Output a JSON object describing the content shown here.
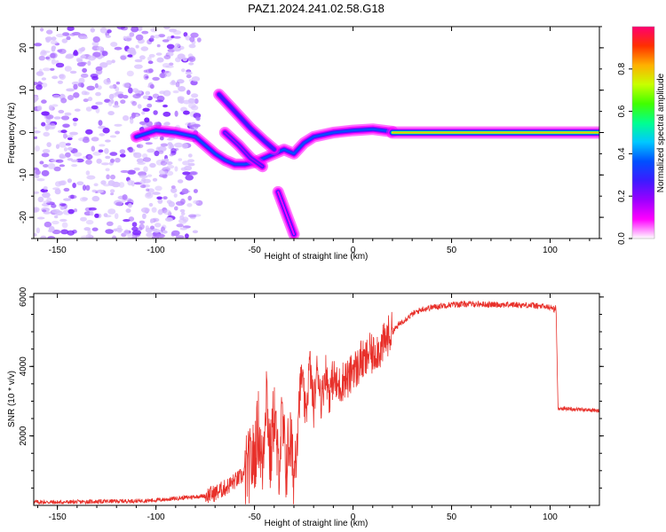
{
  "title": "PAZ1.2024.241.02.58.G18",
  "colors": {
    "snr_line": "#e8302a",
    "colormap": [
      "#ffffff",
      "#ff00ff",
      "#9b00ff",
      "#3c1bff",
      "#0050ff",
      "#00c8ff",
      "#00ff90",
      "#40ff00",
      "#c8ff00",
      "#ffb000",
      "#ff3000",
      "#ff0070"
    ]
  },
  "chart_data": [
    {
      "type": "heatmap",
      "title": "",
      "xlabel": "Height of straight line (km)",
      "ylabel": "Frequency (Hz)",
      "xlim": [
        -162,
        125
      ],
      "ylim": [
        -25,
        25
      ],
      "xticks": [
        -150,
        -100,
        -50,
        0,
        50,
        100
      ],
      "yticks": [
        -20,
        -10,
        0,
        10,
        20
      ],
      "colorbar": {
        "label": "Normalized spectral amplitude",
        "range": [
          0,
          1
        ],
        "ticks": [
          "0.0",
          "0.2",
          "0.4",
          "0.6",
          "0.8"
        ],
        "tick_values": [
          0,
          0.2,
          0.4,
          0.6,
          0.8
        ]
      },
      "ridges": [
        {
          "points": [
            [
              -110,
              -1
            ],
            [
              -100,
              0.5
            ],
            [
              -90,
              0
            ],
            [
              -80,
              -1
            ],
            [
              -75,
              -3
            ],
            [
              -70,
              -5
            ],
            [
              -65,
              -6.5
            ],
            [
              -60,
              -7.5
            ],
            [
              -55,
              -7.5
            ],
            [
              -50,
              -7
            ],
            [
              -45,
              -6
            ],
            [
              -40,
              -5
            ],
            [
              -35,
              -4
            ],
            [
              -30,
              -5
            ],
            [
              -25,
              -2.5
            ],
            [
              -20,
              -1
            ],
            [
              -10,
              0
            ],
            [
              0,
              0.5
            ],
            [
              10,
              0.8
            ],
            [
              20,
              0.2
            ]
          ],
          "amplitude": 0.4
        },
        {
          "points": [
            [
              20,
              0
            ],
            [
              125,
              0
            ]
          ],
          "amplitude": 0.85
        },
        {
          "points": [
            [
              -68,
              9
            ],
            [
              -60,
              5
            ],
            [
              -52,
              1
            ],
            [
              -45,
              -2
            ],
            [
              -40,
              -4
            ]
          ],
          "amplitude": 0.25
        },
        {
          "points": [
            [
              -65,
              0
            ],
            [
              -58,
              -3
            ],
            [
              -52,
              -6
            ],
            [
              -46,
              -8
            ]
          ],
          "amplitude": 0.2
        },
        {
          "points": [
            [
              -38,
              -14
            ],
            [
              -34,
              -19
            ],
            [
              -30,
              -24
            ]
          ],
          "amplitude": 0.08
        }
      ],
      "noise_region_x": [
        -162,
        -78
      ]
    },
    {
      "type": "line",
      "title": "",
      "xlabel": "Height of straight line (km)",
      "ylabel": "SNR (10 * v/v)",
      "xlim": [
        -162,
        125
      ],
      "ylim": [
        0,
        6100
      ],
      "xticks": [
        -150,
        -100,
        -50,
        0,
        50,
        100
      ],
      "yticks": [
        2000,
        4000,
        6000
      ],
      "series": [
        {
          "x": [
            -162,
            -150,
            -130,
            -110,
            -100,
            -90,
            -80,
            -75,
            -70,
            -65,
            -60,
            -55,
            -50,
            -48,
            -46,
            -44,
            -42,
            -40,
            -38,
            -36,
            -34,
            -32,
            -30,
            -28,
            -26,
            -24,
            -22,
            -20,
            -18,
            -16,
            -14,
            -12,
            -10,
            -8,
            -6,
            -4,
            -2,
            0,
            2,
            4,
            6,
            8,
            10,
            12,
            14,
            16,
            18,
            20,
            25,
            30,
            35,
            40,
            45,
            50,
            60,
            70,
            80,
            90,
            100,
            102,
            103,
            104,
            110,
            120,
            125
          ],
          "y": [
            100,
            90,
            110,
            130,
            150,
            200,
            250,
            280,
            350,
            500,
            700,
            900,
            1400,
            2300,
            1000,
            3500,
            1200,
            2800,
            1000,
            2400,
            1100,
            2000,
            800,
            2600,
            3800,
            2500,
            4100,
            2800,
            4000,
            3000,
            3900,
            3200,
            3700,
            3400,
            3500,
            3700,
            3600,
            4000,
            3900,
            4200,
            4100,
            4400,
            4300,
            4500,
            4500,
            4700,
            4900,
            5000,
            5300,
            5500,
            5650,
            5700,
            5750,
            5780,
            5800,
            5780,
            5780,
            5760,
            5700,
            5650,
            5700,
            2800,
            2780,
            2750,
            2720
          ]
        }
      ]
    }
  ]
}
